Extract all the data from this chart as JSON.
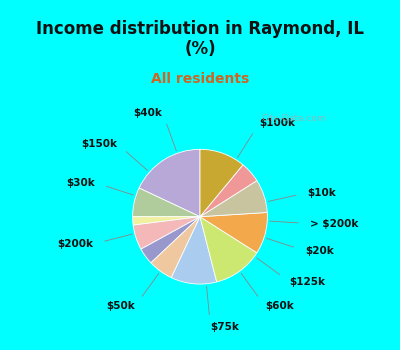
{
  "title": "Income distribution in Raymond, IL\n(%)",
  "subtitle": "All residents",
  "bg_cyan": "#00FFFF",
  "bg_chart": "#e0efe8",
  "watermark": "City-Data.com",
  "segments": [
    {
      "label": "$100k",
      "value": 18,
      "color": "#b8a8d8"
    },
    {
      "label": "$10k",
      "value": 7,
      "color": "#b0cc9c"
    },
    {
      "label": "> $200k",
      "value": 2,
      "color": "#f0f0a0"
    },
    {
      "label": "$20k",
      "value": 6,
      "color": "#f4b8b8"
    },
    {
      "label": "$125k",
      "value": 4,
      "color": "#9898cc"
    },
    {
      "label": "$60k",
      "value": 6,
      "color": "#f0c8a0"
    },
    {
      "label": "$75k",
      "value": 11,
      "color": "#aaccee"
    },
    {
      "label": "$50k",
      "value": 12,
      "color": "#cce870"
    },
    {
      "label": "$200k",
      "value": 10,
      "color": "#f4a84c"
    },
    {
      "label": "$30k",
      "value": 8,
      "color": "#c8c4a0"
    },
    {
      "label": "$150k",
      "value": 5,
      "color": "#f09898"
    },
    {
      "label": "$40k",
      "value": 11,
      "color": "#c8a830"
    }
  ],
  "label_color": "#111111",
  "label_fontsize": 7.5,
  "title_fontsize": 12,
  "title_color": "#111111",
  "subtitle_color": "#cc6622",
  "subtitle_fontsize": 10
}
